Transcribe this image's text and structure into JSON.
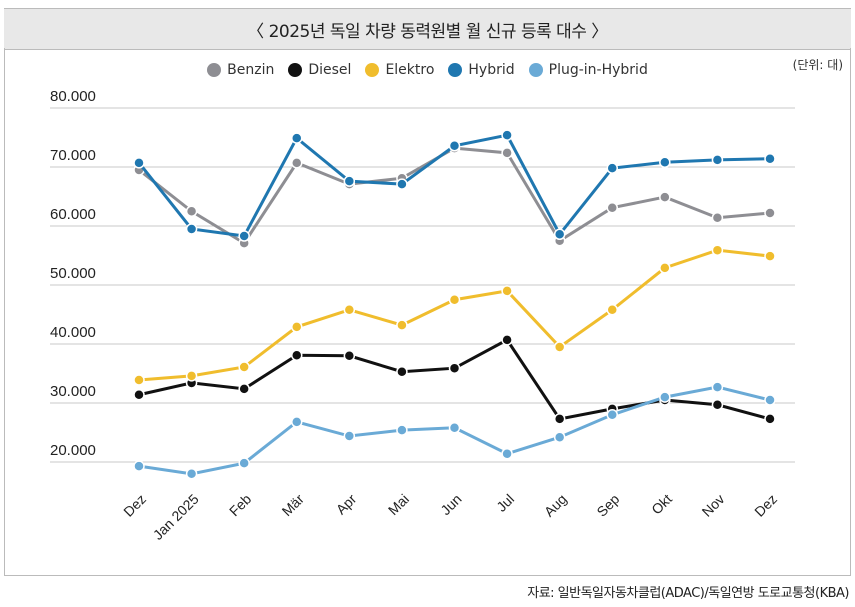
{
  "title": "〈 2025년 독일 차량 동력원별 월 신규 등록 대수 〉",
  "unit": "(단위: 대)",
  "source": "자료: 일반독일자동차클럽(ADAC)/독일연방 도로교통청(KBA)",
  "chart_data": {
    "type": "line",
    "title": "〈 2025년 독일 차량 동력원별 월 신규 등록 대수 〉",
    "categories": [
      "Dez",
      "Jan 2025",
      "Feb",
      "Mär",
      "Apr",
      "Mai",
      "Jun",
      "Jul",
      "Aug",
      "Sep",
      "Okt",
      "Nov",
      "Dez"
    ],
    "ylim": [
      20000,
      80000
    ],
    "yticks": [
      20000,
      30000,
      40000,
      50000,
      60000,
      70000,
      80000
    ],
    "ytick_labels": [
      "20.000",
      "30.000",
      "40.000",
      "50.000",
      "60.000",
      "70.000",
      "80.000"
    ],
    "grid": true,
    "legend": "top-center",
    "series": [
      {
        "name": "Benzin",
        "color": "#8e8e93",
        "values": [
          69500,
          62500,
          57100,
          70700,
          67100,
          68100,
          73200,
          72400,
          57500,
          63100,
          64900,
          61400,
          62200
        ]
      },
      {
        "name": "Diesel",
        "color": "#111111",
        "values": [
          31400,
          33400,
          32400,
          38100,
          38000,
          35300,
          35900,
          40700,
          27300,
          29000,
          30500,
          29700,
          27300
        ]
      },
      {
        "name": "Elektro",
        "color": "#f0bd2d",
        "values": [
          33900,
          34600,
          36100,
          42900,
          45800,
          43200,
          47500,
          49000,
          39500,
          45800,
          52900,
          55900,
          54900
        ]
      },
      {
        "name": "Hybrid",
        "color": "#1f77b0",
        "values": [
          70700,
          59500,
          58300,
          74900,
          67600,
          67100,
          73600,
          75400,
          58600,
          69800,
          70800,
          71200,
          71400
        ]
      },
      {
        "name": "Plug-in-Hybrid",
        "color": "#6aaad6",
        "values": [
          19300,
          18000,
          19800,
          26800,
          24400,
          25400,
          25800,
          21400,
          24200,
          28000,
          31000,
          32700,
          30500
        ]
      }
    ]
  }
}
